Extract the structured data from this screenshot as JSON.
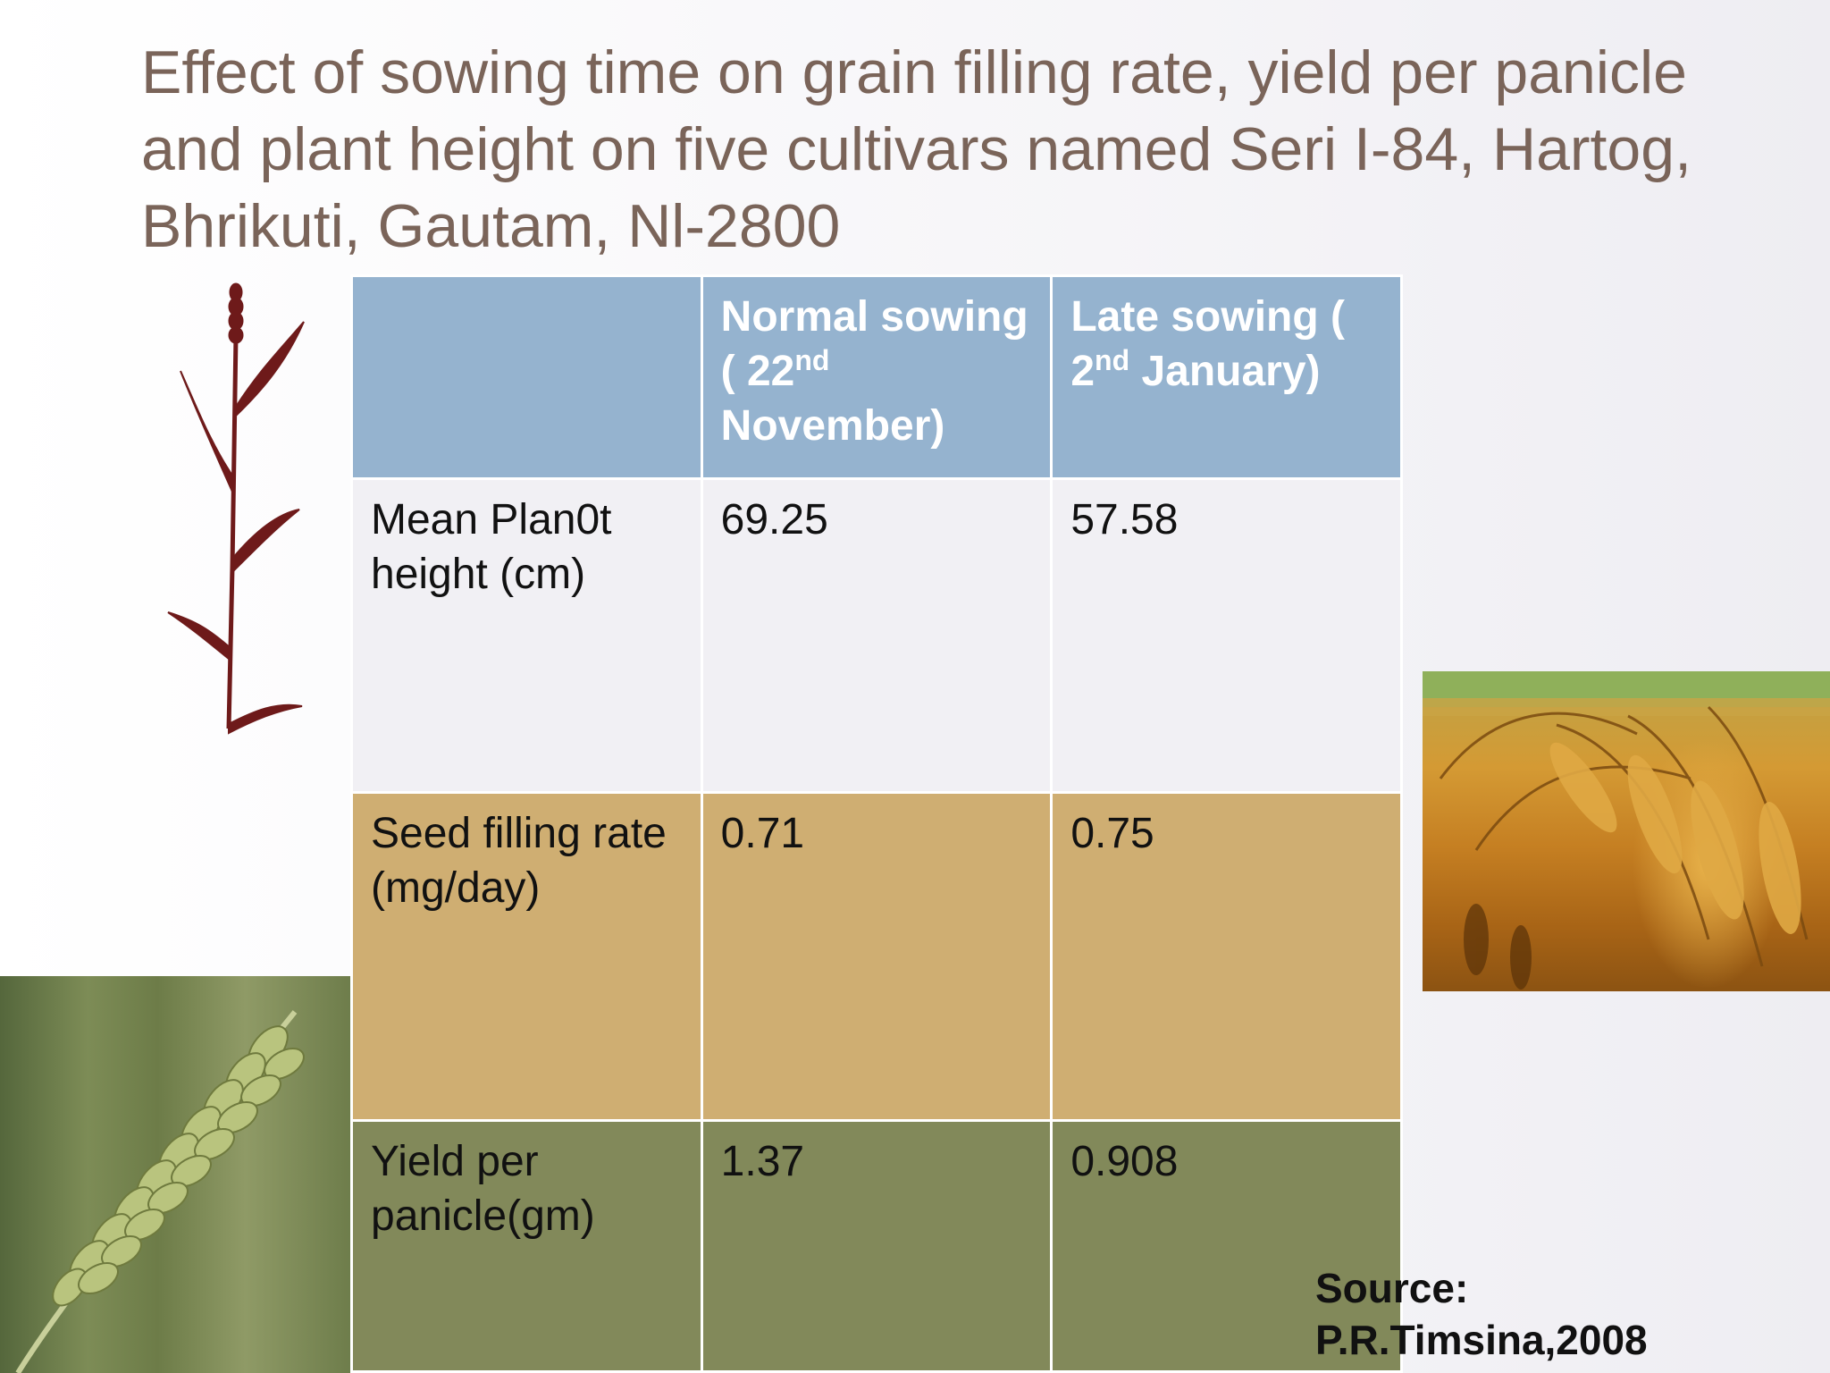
{
  "title": "Effect of sowing time on grain filling rate, yield per panicle and plant height on five cultivars  named Seri I-84, Hartog, Bhrikuti, Gautam, Nl-2800",
  "table": {
    "headers": [
      {
        "label": ""
      },
      {
        "pre": "Normal sowing ( 22",
        "sup": "nd",
        "post": " November)"
      },
      {
        "pre": "Late sowing ( 2",
        "sup": "nd",
        "post": " January)"
      }
    ],
    "rows": [
      {
        "label": "Mean Plan0t height (cm)",
        "normal": "69.25",
        "late": "57.58"
      },
      {
        "label": "Seed filling rate (mg/day)",
        "normal": "0.71",
        "late": "0.75"
      },
      {
        "label": "Yield per panicle(gm)",
        "normal": "1.37",
        "late": "0.908"
      }
    ]
  },
  "source": {
    "line1": "Source:",
    "line2": "P.R.Timsina,2008"
  },
  "colors": {
    "header": "#95b3cf",
    "row1": "#f1f0f4",
    "row2": "#cfae72",
    "row3": "#82895a",
    "title": "#7a6459",
    "plant": "#6e1a1a"
  },
  "images": {
    "plant": "wheat-plant-icon",
    "right_photo": "golden-wheat-field-photo",
    "left_photo": "green-wheat-ear-photo"
  }
}
